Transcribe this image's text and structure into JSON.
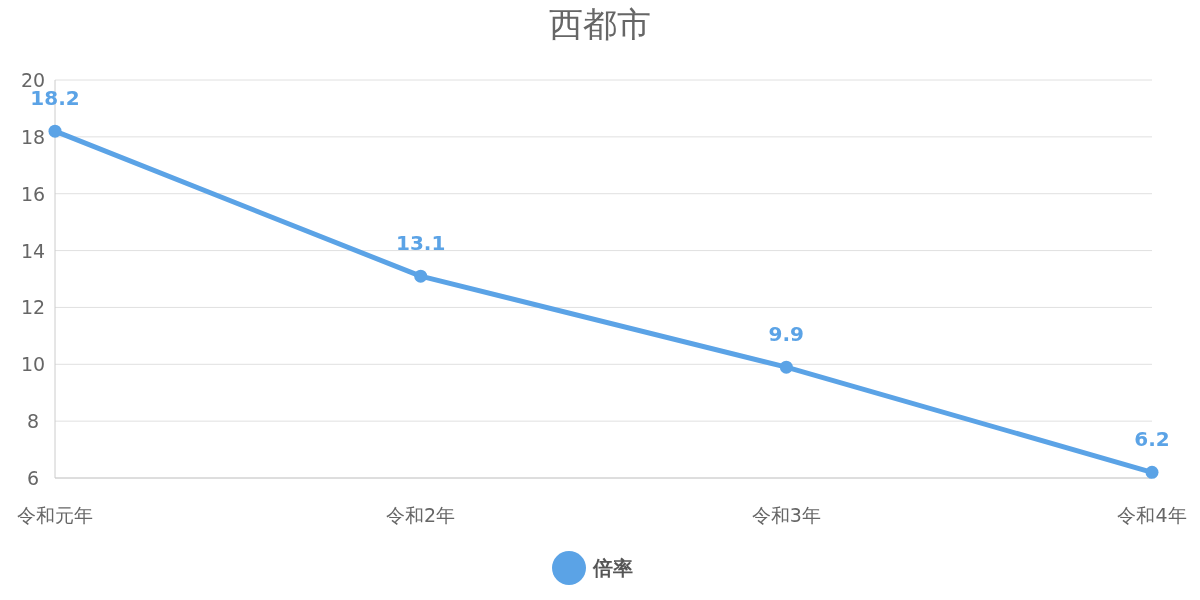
{
  "chart_data": {
    "type": "line",
    "title": "西都市",
    "categories": [
      "令和元年",
      "令和2年",
      "令和3年",
      "令和4年"
    ],
    "series": [
      {
        "name": "倍率",
        "color": "#5ba3e6",
        "values": [
          18.2,
          13.1,
          9.9,
          6.2
        ]
      }
    ],
    "ylim": [
      6,
      20
    ],
    "yticks": [
      6,
      8,
      10,
      12,
      14,
      16,
      18,
      20
    ],
    "grid": "y",
    "legend": "bottom",
    "marker": "circle",
    "line_style": "solid",
    "data_labels": true
  }
}
